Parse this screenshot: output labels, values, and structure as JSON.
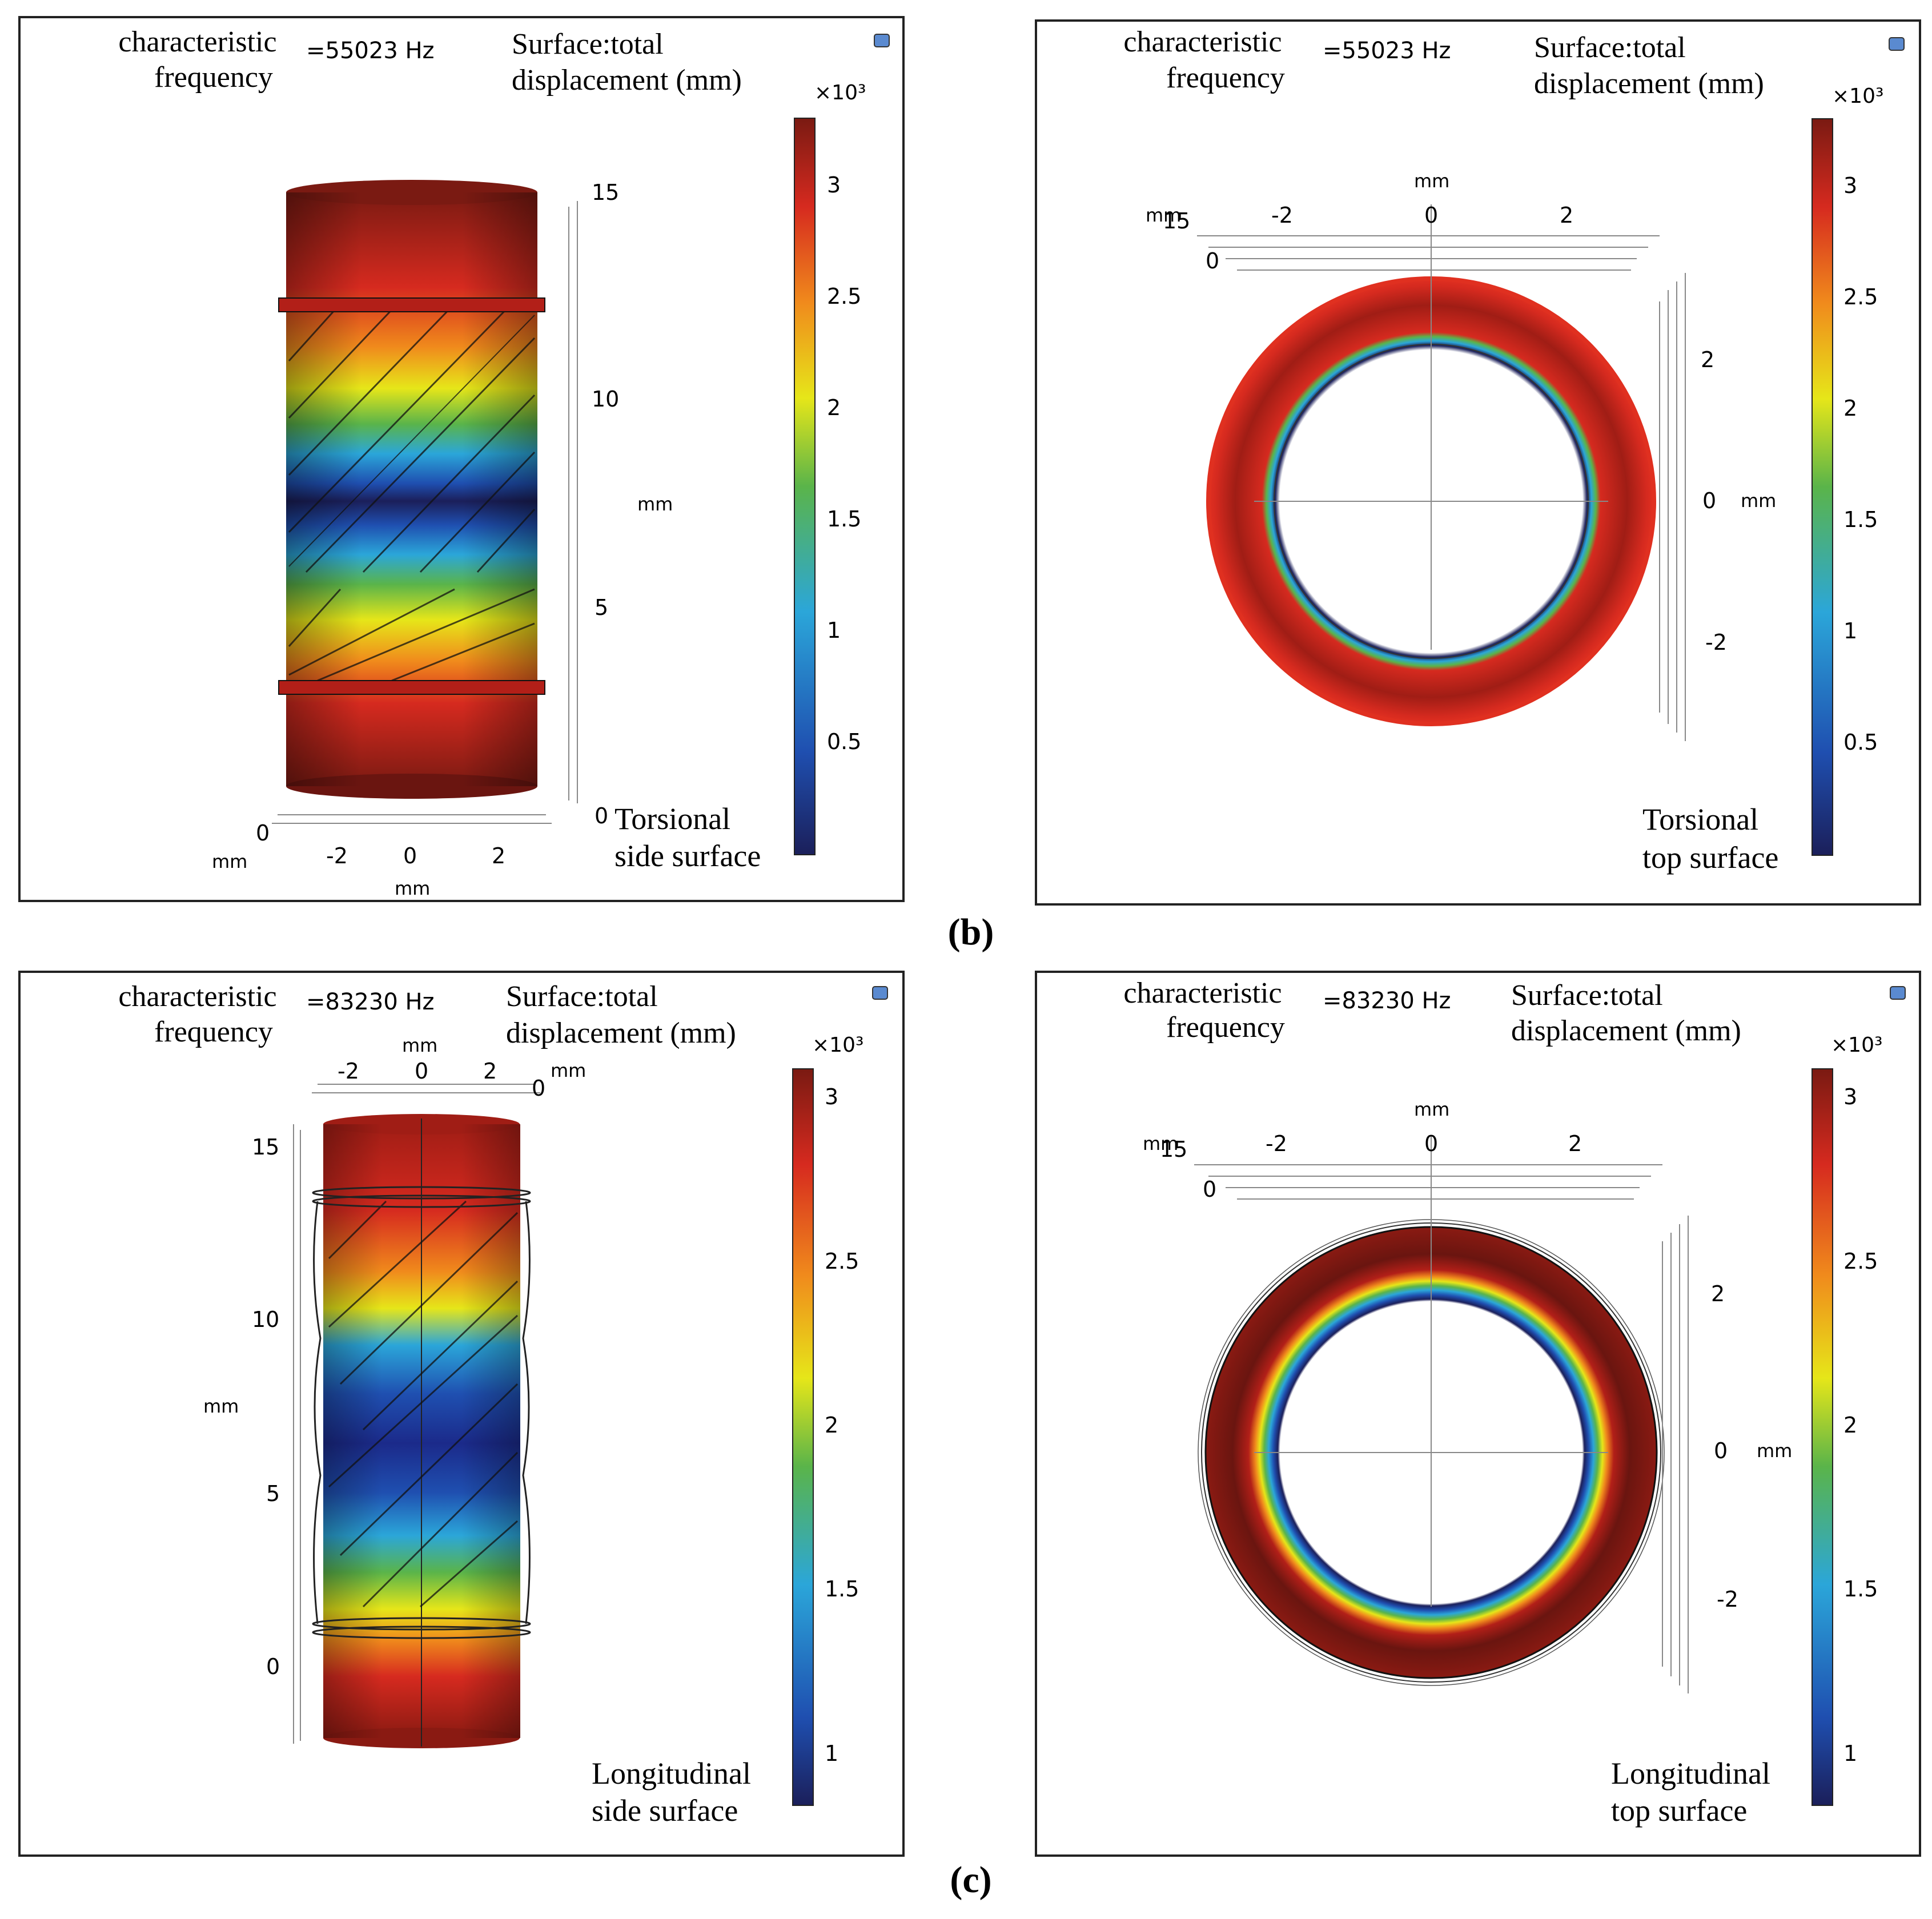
{
  "captions": {
    "b": "(b)",
    "c": "(c)"
  },
  "common": {
    "char_freq_line1": "characteristic",
    "char_freq_line2": "frequency",
    "surface_line1": "Surface:total",
    "surface_line2": "displacement (mm)",
    "colorbar_exponent": "×10³",
    "axis_unit": "mm",
    "zoom_icon": "view-icon"
  },
  "panels": [
    {
      "id": "torsional-side",
      "frequency": "=55023 Hz",
      "mode_line1": "Torsional",
      "mode_line2": "side surface",
      "colorbar_ticks": [
        "3",
        "2.5",
        "2",
        "1.5",
        "1",
        "0.5"
      ],
      "axis_ticks_vertical": [
        "15",
        "10",
        "5",
        "0"
      ],
      "axis_ticks_horizontal": [
        "-2",
        "0",
        "2"
      ],
      "axis_zero_label": "0"
    },
    {
      "id": "torsional-top",
      "frequency": "=55023 Hz",
      "mode_line1": "Torsional",
      "mode_line2": "top surface",
      "colorbar_ticks": [
        "3",
        "2.5",
        "2",
        "1.5",
        "1",
        "0.5"
      ],
      "axis_ticks_top": [
        "-2",
        "0",
        "2"
      ],
      "axis_ticks_right": [
        "2",
        "0",
        "-2"
      ],
      "axis_corner_15": "15",
      "axis_corner_0": "0"
    },
    {
      "id": "longitudinal-side",
      "frequency": "=83230 Hz",
      "mode_line1": "Longitudinal",
      "mode_line2": "side surface",
      "colorbar_ticks": [
        "3",
        "2.5",
        "2",
        "1.5",
        "1"
      ],
      "axis_ticks_vertical": [
        "15",
        "10",
        "5",
        "0"
      ],
      "axis_ticks_horizontal": [
        "-2",
        "0",
        "2"
      ],
      "axis_zero_label": "0"
    },
    {
      "id": "longitudinal-top",
      "frequency": "=83230 Hz",
      "mode_line1": "Longitudinal",
      "mode_line2": "top surface",
      "colorbar_ticks": [
        "3",
        "2.5",
        "2",
        "1.5",
        "1"
      ],
      "axis_ticks_top": [
        "-2",
        "0",
        "2"
      ],
      "axis_ticks_right": [
        "2",
        "0",
        "-2"
      ],
      "axis_corner_15": "15",
      "axis_corner_0": "0"
    }
  ],
  "colors": {
    "dark_red": "#7a1a12",
    "red": "#d62a1f",
    "orange": "#f08a1c",
    "yellow": "#e6e619",
    "green": "#5ab44a",
    "cyan": "#2ba6d9",
    "blue": "#1f4fb0",
    "navy": "#1b1f5a"
  }
}
